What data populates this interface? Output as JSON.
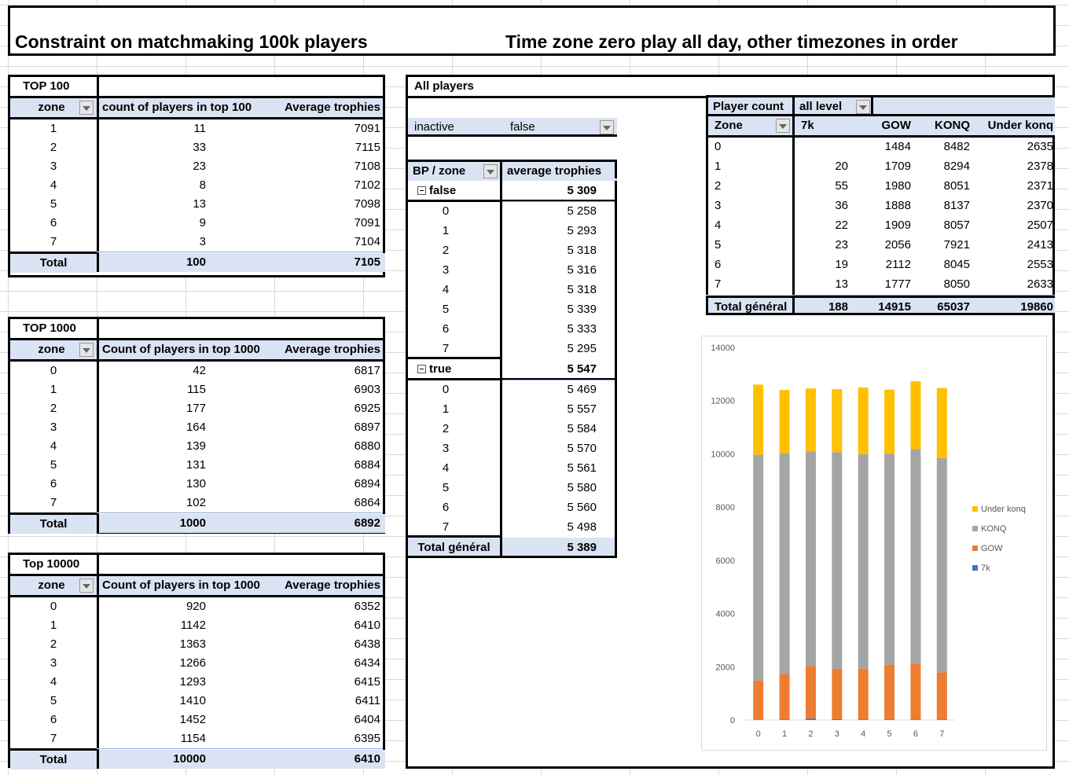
{
  "titles": {
    "left": "Constraint on matchmaking 100k players",
    "right": "Time zone zero play all day, other timezones in order"
  },
  "top100": {
    "label": "TOP 100",
    "headers": [
      "zone",
      "count of players in top 100",
      "Average trophies"
    ],
    "rows": [
      [
        "1",
        "11",
        "7091"
      ],
      [
        "2",
        "33",
        "7115"
      ],
      [
        "3",
        "23",
        "7108"
      ],
      [
        "4",
        "8",
        "7102"
      ],
      [
        "5",
        "13",
        "7098"
      ],
      [
        "6",
        "9",
        "7091"
      ],
      [
        "7",
        "3",
        "7104"
      ]
    ],
    "total": [
      "Total",
      "100",
      "7105"
    ]
  },
  "top1000": {
    "label": "TOP 1000",
    "headers": [
      "zone",
      "Count of players in top 1000",
      "Average trophies"
    ],
    "rows": [
      [
        "0",
        "42",
        "6817"
      ],
      [
        "1",
        "115",
        "6903"
      ],
      [
        "2",
        "177",
        "6925"
      ],
      [
        "3",
        "164",
        "6897"
      ],
      [
        "4",
        "139",
        "6880"
      ],
      [
        "5",
        "131",
        "6884"
      ],
      [
        "6",
        "130",
        "6894"
      ],
      [
        "7",
        "102",
        "6864"
      ]
    ],
    "total": [
      "Total",
      "1000",
      "6892"
    ]
  },
  "top10000": {
    "label": "Top 10000",
    "headers": [
      "zone",
      "Count of players in top 1000",
      "Average trophies"
    ],
    "rows": [
      [
        "0",
        "920",
        "6352"
      ],
      [
        "1",
        "1142",
        "6410"
      ],
      [
        "2",
        "1363",
        "6438"
      ],
      [
        "3",
        "1266",
        "6434"
      ],
      [
        "4",
        "1293",
        "6415"
      ],
      [
        "5",
        "1410",
        "6411"
      ],
      [
        "6",
        "1452",
        "6404"
      ],
      [
        "7",
        "1154",
        "6395"
      ]
    ],
    "total": [
      "Total",
      "10000",
      "6410"
    ]
  },
  "allplayers": {
    "label": "All players",
    "filter_field": "inactive",
    "filter_value": "false",
    "headers": [
      "BP / zone",
      "average trophies"
    ],
    "groups": [
      {
        "label": "false",
        "value": "5 309",
        "rows": [
          [
            "0",
            "5 258"
          ],
          [
            "1",
            "5 293"
          ],
          [
            "2",
            "5 318"
          ],
          [
            "3",
            "5 316"
          ],
          [
            "4",
            "5 318"
          ],
          [
            "5",
            "5 339"
          ],
          [
            "6",
            "5 333"
          ],
          [
            "7",
            "5 295"
          ]
        ]
      },
      {
        "label": "true",
        "value": "5 547",
        "rows": [
          [
            "0",
            "5 469"
          ],
          [
            "1",
            "5 557"
          ],
          [
            "2",
            "5 584"
          ],
          [
            "3",
            "5 570"
          ],
          [
            "4",
            "5 561"
          ],
          [
            "5",
            "5 580"
          ],
          [
            "6",
            "5 560"
          ],
          [
            "7",
            "5 498"
          ]
        ]
      }
    ],
    "total": [
      "Total général",
      "5 389"
    ]
  },
  "playercount": {
    "filter_label": "Player count",
    "filter_value": "all level",
    "headers": [
      "Zone",
      "7k",
      "GOW",
      "KONQ",
      "Under konq"
    ],
    "rows": [
      [
        "0",
        "",
        "1484",
        "8482",
        "2635"
      ],
      [
        "1",
        "20",
        "1709",
        "8294",
        "2378"
      ],
      [
        "2",
        "55",
        "1980",
        "8051",
        "2371"
      ],
      [
        "3",
        "36",
        "1888",
        "8137",
        "2370"
      ],
      [
        "4",
        "22",
        "1909",
        "8057",
        "2507"
      ],
      [
        "5",
        "23",
        "2056",
        "7921",
        "2413"
      ],
      [
        "6",
        "19",
        "2112",
        "8045",
        "2553"
      ],
      [
        "7",
        "13",
        "1777",
        "8050",
        "2633"
      ]
    ],
    "total": [
      "Total général",
      "188",
      "14915",
      "65037",
      "19860"
    ]
  },
  "chart_data": {
    "type": "bar",
    "stacked": true,
    "categories": [
      "0",
      "1",
      "2",
      "3",
      "4",
      "5",
      "6",
      "7"
    ],
    "series": [
      {
        "name": "7k",
        "color": "#4472c4",
        "values": [
          0,
          20,
          55,
          36,
          22,
          23,
          19,
          13
        ]
      },
      {
        "name": "GOW",
        "color": "#ed7d31",
        "values": [
          1484,
          1709,
          1980,
          1888,
          1909,
          2056,
          2112,
          1777
        ]
      },
      {
        "name": "KONQ",
        "color": "#a5a5a5",
        "values": [
          8482,
          8294,
          8051,
          8137,
          8057,
          7921,
          8045,
          8050
        ]
      },
      {
        "name": "Under konq",
        "color": "#ffc000",
        "values": [
          2635,
          2378,
          2371,
          2370,
          2507,
          2413,
          2553,
          2633
        ]
      }
    ],
    "ylim": [
      0,
      14000
    ],
    "yticks": [
      "0",
      "2000",
      "4000",
      "6000",
      "8000",
      "10000",
      "12000",
      "14000"
    ],
    "legend": "right",
    "legend_order": [
      "Under konq",
      "KONQ",
      "GOW",
      "7k"
    ],
    "grid": false
  }
}
